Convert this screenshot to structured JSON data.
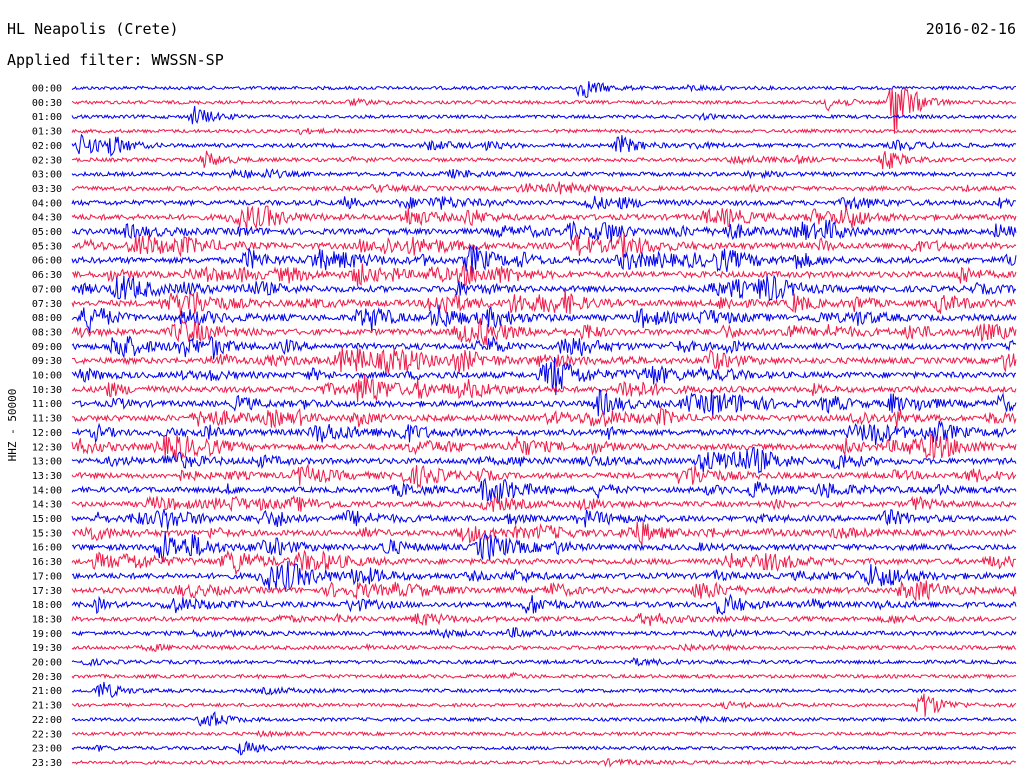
{
  "header": {
    "station": "HL Neapolis (Crete)",
    "filter": "Applied filter: WWSSN-SP",
    "date": "2016-02-16"
  },
  "chart_data": {
    "type": "line",
    "title": "HL Neapolis (Crete)",
    "subtitle": "Applied filter: WWSSN-SP",
    "date": "2016-02-16",
    "ylabel": "HHZ - 50000",
    "xlabel": "",
    "grid": false,
    "trace_colors": [
      "#0000ee",
      "#ee1c4a"
    ],
    "row_labels": [
      "00:00",
      "00:30",
      "01:00",
      "01:30",
      "02:00",
      "02:30",
      "03:00",
      "03:30",
      "04:00",
      "04:30",
      "05:00",
      "05:30",
      "06:00",
      "06:30",
      "07:00",
      "07:30",
      "08:00",
      "08:30",
      "09:00",
      "09:30",
      "10:00",
      "10:30",
      "11:00",
      "11:30",
      "12:00",
      "12:30",
      "13:00",
      "13:30",
      "14:00",
      "14:30",
      "15:00",
      "15:30",
      "16:00",
      "16:30",
      "17:00",
      "17:30",
      "18:00",
      "18:30",
      "19:00",
      "19:30",
      "20:00",
      "20:30",
      "21:00",
      "21:30",
      "22:00",
      "22:30",
      "23:00",
      "23:30"
    ],
    "activity": [
      0.05,
      0.07,
      0.06,
      0.05,
      0.25,
      0.18,
      0.25,
      0.35,
      0.55,
      0.75,
      0.85,
      0.9,
      0.9,
      0.9,
      0.9,
      0.9,
      0.9,
      0.9,
      0.9,
      0.88,
      0.85,
      0.82,
      0.85,
      0.85,
      0.88,
      0.85,
      0.8,
      0.78,
      0.7,
      0.65,
      0.72,
      0.75,
      0.8,
      0.8,
      0.78,
      0.75,
      0.65,
      0.45,
      0.3,
      0.2,
      0.15,
      0.1,
      0.08,
      0.06,
      0.05,
      0.05,
      0.05,
      0.04
    ],
    "events": [
      {
        "row": 0,
        "t": 0.54,
        "amp": 1.6
      },
      {
        "row": 1,
        "t": 0.8,
        "amp": 1.0
      },
      {
        "row": 1,
        "t": 0.87,
        "amp": 5.0
      },
      {
        "row": 2,
        "t": 0.13,
        "amp": 1.4
      },
      {
        "row": 4,
        "t": 0.01,
        "amp": 1.6
      },
      {
        "row": 4,
        "t": 0.04,
        "amp": 1.4
      },
      {
        "row": 4,
        "t": 0.58,
        "amp": 1.4
      },
      {
        "row": 5,
        "t": 0.14,
        "amp": 1.2
      },
      {
        "row": 5,
        "t": 0.86,
        "amp": 1.5
      },
      {
        "row": 42,
        "t": 0.03,
        "amp": 1.4
      },
      {
        "row": 43,
        "t": 0.9,
        "amp": 2.2
      },
      {
        "row": 44,
        "t": 0.14,
        "amp": 1.6
      },
      {
        "row": 46,
        "t": 0.18,
        "amp": 1.0
      }
    ]
  }
}
